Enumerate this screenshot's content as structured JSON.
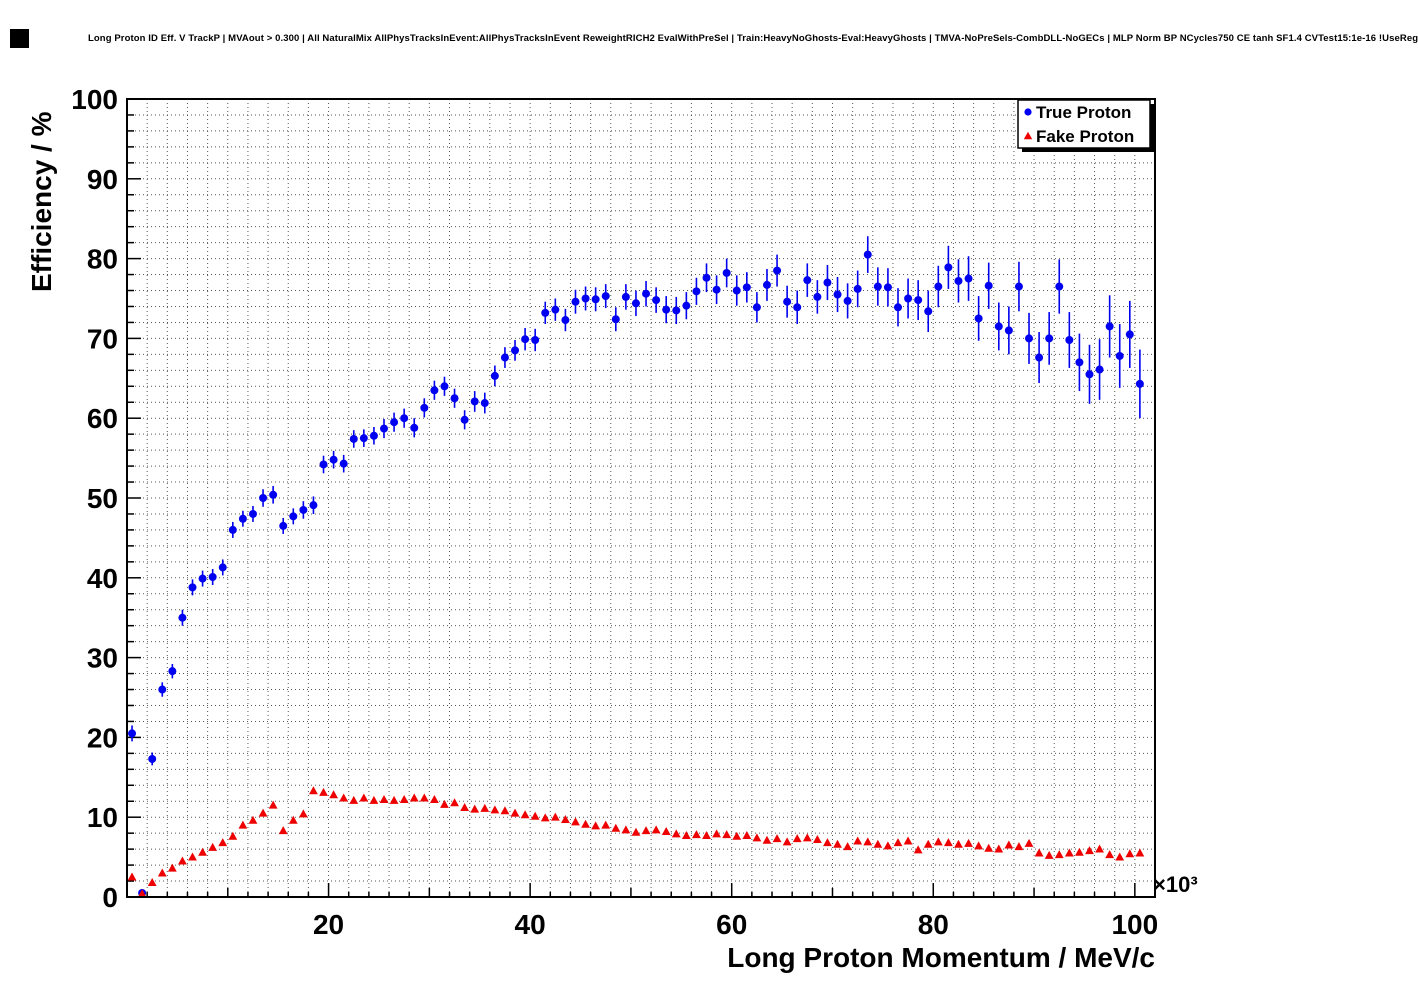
{
  "canvas": {
    "background": "#ffffff",
    "frame_color": "#000000",
    "grid_style": "dotted"
  },
  "chart_data": {
    "type": "scatter",
    "title": "Long Proton ID Eff. V TrackP | MVAout > 0.300 | All NaturalMix AllPhysTracksInEvent:AllPhysTracksInEvent ReweightRICH2 EvalWithPreSel | Train:HeavyNoGhosts-Eval:HeavyGhosts | TMVA-NoPreSels-CombDLL-NoGECs | MLP Norm BP NCycles750 CE tanh SF1.4 CVTest15:1e-16 !UseReg",
    "xlabel": "Long Proton Momentum / MeV/c",
    "ylabel": "Efficiency / %",
    "x_exponent_label": "×10³",
    "xlim": [
      0,
      102
    ],
    "ylim": [
      0,
      100
    ],
    "x_major_ticks": [
      20,
      40,
      60,
      80,
      100
    ],
    "y_major_ticks": [
      0,
      10,
      20,
      30,
      40,
      50,
      60,
      70,
      80,
      90,
      100
    ],
    "minor_grid_step": 2,
    "grid": "dotted",
    "legend": {
      "position": "top-right"
    },
    "x_unit_scale": 1000,
    "x": [
      0.5,
      1.5,
      2.5,
      3.5,
      4.5,
      5.5,
      6.5,
      7.5,
      8.5,
      9.5,
      10.5,
      11.5,
      12.5,
      13.5,
      14.5,
      15.5,
      16.5,
      17.5,
      18.5,
      19.5,
      20.5,
      21.5,
      22.5,
      23.5,
      24.5,
      25.5,
      26.5,
      27.5,
      28.5,
      29.5,
      30.5,
      31.5,
      32.5,
      33.5,
      34.5,
      35.5,
      36.5,
      37.5,
      38.5,
      39.5,
      40.5,
      41.5,
      42.5,
      43.5,
      44.5,
      45.5,
      46.5,
      47.5,
      48.5,
      49.5,
      50.5,
      51.5,
      52.5,
      53.5,
      54.5,
      55.5,
      56.5,
      57.5,
      58.5,
      59.5,
      60.5,
      61.5,
      62.5,
      63.5,
      64.5,
      65.5,
      66.5,
      67.5,
      68.5,
      69.5,
      70.5,
      71.5,
      72.5,
      73.5,
      74.5,
      75.5,
      76.5,
      77.5,
      78.5,
      79.5,
      80.5,
      81.5,
      82.5,
      83.5,
      84.5,
      85.5,
      86.5,
      87.5,
      88.5,
      89.5,
      90.5,
      91.5,
      92.5,
      93.5,
      94.5,
      95.5,
      96.5,
      97.5,
      98.5,
      99.5,
      100.5
    ],
    "series": [
      {
        "name": "True Proton",
        "marker": "circle",
        "color": "#0000f0",
        "y": [
          20.5,
          0.5,
          17.3,
          26.0,
          28.3,
          35.0,
          38.8,
          39.9,
          40.1,
          41.3,
          46.0,
          47.4,
          48.0,
          50.0,
          50.4,
          46.5,
          47.7,
          48.5,
          49.1,
          54.2,
          54.8,
          54.3,
          57.4,
          57.5,
          57.8,
          58.7,
          59.5,
          60.0,
          58.8,
          61.3,
          63.5,
          64.0,
          62.5,
          59.8,
          62.1,
          61.9,
          65.3,
          67.6,
          68.5,
          69.9,
          69.8,
          73.2,
          73.6,
          72.3,
          74.6,
          75.0,
          74.9,
          75.3,
          72.4,
          75.2,
          74.4,
          75.6,
          74.8,
          73.6,
          73.5,
          74.1,
          75.9,
          77.6,
          76.1,
          78.2,
          76.0,
          76.4,
          73.9,
          76.7,
          78.5,
          74.6,
          73.9,
          77.3,
          75.2,
          77.0,
          75.5,
          74.7,
          76.2,
          80.5,
          76.5,
          76.4,
          73.9,
          75.0,
          74.8,
          73.4,
          76.5,
          78.9,
          77.2,
          77.5,
          72.5,
          76.6,
          71.5,
          71.0,
          76.5,
          70.0,
          67.6,
          70.0,
          76.5,
          69.8,
          67.0,
          65.5,
          66.1,
          71.5,
          67.8,
          70.5,
          64.3
        ],
        "yerr": [
          1.0,
          0.5,
          0.8,
          0.9,
          0.9,
          1.0,
          1.0,
          1.0,
          1.0,
          1.0,
          1.0,
          1.0,
          1.0,
          1.1,
          1.1,
          1.0,
          1.0,
          1.1,
          1.1,
          1.1,
          1.1,
          1.1,
          1.1,
          1.1,
          1.1,
          1.2,
          1.2,
          1.2,
          1.2,
          1.2,
          1.2,
          1.2,
          1.2,
          1.2,
          1.3,
          1.3,
          1.3,
          1.3,
          1.3,
          1.4,
          1.4,
          1.4,
          1.4,
          1.4,
          1.5,
          1.5,
          1.5,
          1.5,
          1.5,
          1.6,
          1.6,
          1.6,
          1.6,
          1.7,
          1.7,
          1.7,
          1.7,
          1.8,
          1.8,
          1.8,
          1.9,
          1.9,
          1.9,
          2.0,
          2.0,
          2.0,
          2.1,
          2.1,
          2.1,
          2.2,
          2.2,
          2.2,
          2.3,
          2.3,
          2.4,
          2.4,
          2.4,
          2.5,
          2.5,
          2.6,
          2.6,
          2.7,
          2.7,
          2.8,
          2.8,
          2.9,
          3.0,
          3.0,
          3.1,
          3.2,
          3.2,
          3.3,
          3.4,
          3.5,
          3.6,
          3.7,
          3.8,
          3.9,
          4.0,
          4.2,
          4.3
        ]
      },
      {
        "name": "Fake Proton",
        "marker": "triangle-up",
        "color": "#ee0000",
        "y": [
          2.5,
          0.4,
          1.8,
          3.0,
          3.6,
          4.5,
          5.0,
          5.6,
          6.2,
          6.8,
          7.6,
          9.0,
          9.6,
          10.5,
          11.5,
          8.3,
          9.6,
          10.4,
          13.3,
          13.1,
          12.8,
          12.4,
          12.1,
          12.4,
          12.1,
          12.2,
          12.1,
          12.2,
          12.4,
          12.4,
          12.2,
          11.6,
          11.8,
          11.2,
          11.0,
          11.1,
          10.9,
          10.8,
          10.5,
          10.3,
          10.1,
          9.9,
          10.0,
          9.7,
          9.4,
          9.1,
          8.9,
          9.0,
          8.6,
          8.4,
          8.1,
          8.3,
          8.4,
          8.2,
          7.9,
          7.7,
          7.8,
          7.7,
          7.9,
          7.8,
          7.6,
          7.7,
          7.4,
          7.1,
          7.3,
          6.9,
          7.3,
          7.4,
          7.2,
          6.8,
          6.6,
          6.3,
          7.0,
          6.9,
          6.6,
          6.4,
          6.8,
          7.0,
          5.9,
          6.6,
          6.9,
          6.8,
          6.6,
          6.7,
          6.4,
          6.1,
          6.0,
          6.5,
          6.3,
          6.7,
          5.5,
          5.2,
          5.3,
          5.5,
          5.6,
          5.8,
          6.0,
          5.3,
          5.0,
          5.4,
          5.5
        ],
        "yerr": 0.35
      }
    ]
  }
}
